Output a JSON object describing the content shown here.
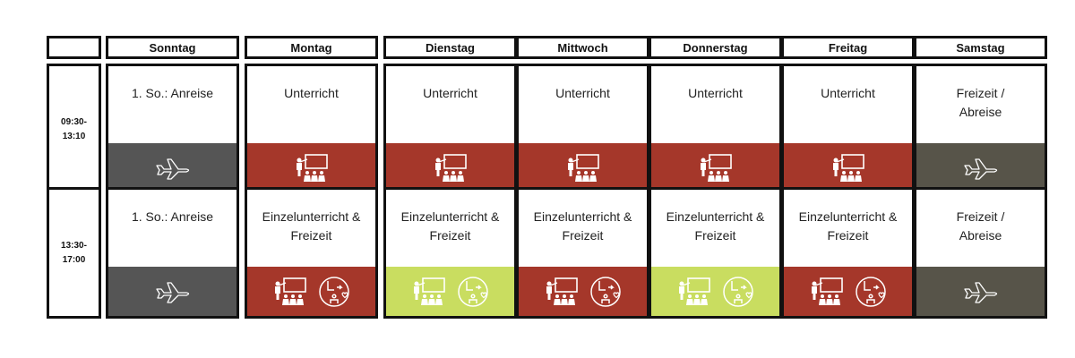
{
  "corner": "",
  "days": [
    "Sonntag",
    "Montag",
    "Dienstag",
    "Mittwoch",
    "Donnerstag",
    "Freitag",
    "Samstag"
  ],
  "colors": {
    "travel_dark": "#555555",
    "travel_olive": "#575449",
    "class_red": "#A5372A",
    "class_lime": "#C9DD60",
    "icon_fill": "#ffffff"
  },
  "rows": [
    {
      "time": [
        "09:30-",
        "13:10"
      ],
      "cells": [
        {
          "text": [
            "1. So.: Anreise"
          ],
          "band": "travel_dark",
          "icons": [
            "plane-icon"
          ]
        },
        {
          "text": [
            "Unterricht"
          ],
          "band": "class_red",
          "icons": [
            "classroom-icon"
          ]
        },
        {
          "text": [
            "Unterricht"
          ],
          "band": "class_red",
          "icons": [
            "classroom-icon"
          ]
        },
        {
          "text": [
            "Unterricht"
          ],
          "band": "class_red",
          "icons": [
            "classroom-icon"
          ]
        },
        {
          "text": [
            "Unterricht"
          ],
          "band": "class_red",
          "icons": [
            "classroom-icon"
          ]
        },
        {
          "text": [
            "Unterricht"
          ],
          "band": "class_red",
          "icons": [
            "classroom-icon"
          ]
        },
        {
          "text": [
            "Freizeit /",
            "Abreise"
          ],
          "band": "travel_olive",
          "icons": [
            "plane-icon"
          ]
        }
      ]
    },
    {
      "time": [
        "13:30-",
        "17:00"
      ],
      "cells": [
        {
          "text": [
            "1. So.: Anreise"
          ],
          "band": "travel_dark",
          "icons": [
            "plane-icon"
          ]
        },
        {
          "text": [
            "Einzelunterricht &",
            "Freizeit"
          ],
          "band": "class_red",
          "icons": [
            "classroom-icon",
            "freetime-clock-icon"
          ]
        },
        {
          "text": [
            "Einzelunterricht &",
            "Freizeit"
          ],
          "band": "class_lime",
          "icons": [
            "classroom-icon",
            "freetime-clock-icon"
          ]
        },
        {
          "text": [
            "Einzelunterricht &",
            "Freizeit"
          ],
          "band": "class_red",
          "icons": [
            "classroom-icon",
            "freetime-clock-icon"
          ]
        },
        {
          "text": [
            "Einzelunterricht &",
            "Freizeit"
          ],
          "band": "class_lime",
          "icons": [
            "classroom-icon",
            "freetime-clock-icon"
          ]
        },
        {
          "text": [
            "Einzelunterricht &",
            "Freizeit"
          ],
          "band": "class_red",
          "icons": [
            "classroom-icon",
            "freetime-clock-icon"
          ]
        },
        {
          "text": [
            "Freizeit /",
            "Abreise"
          ],
          "band": "travel_olive",
          "icons": [
            "plane-icon"
          ]
        }
      ]
    }
  ]
}
